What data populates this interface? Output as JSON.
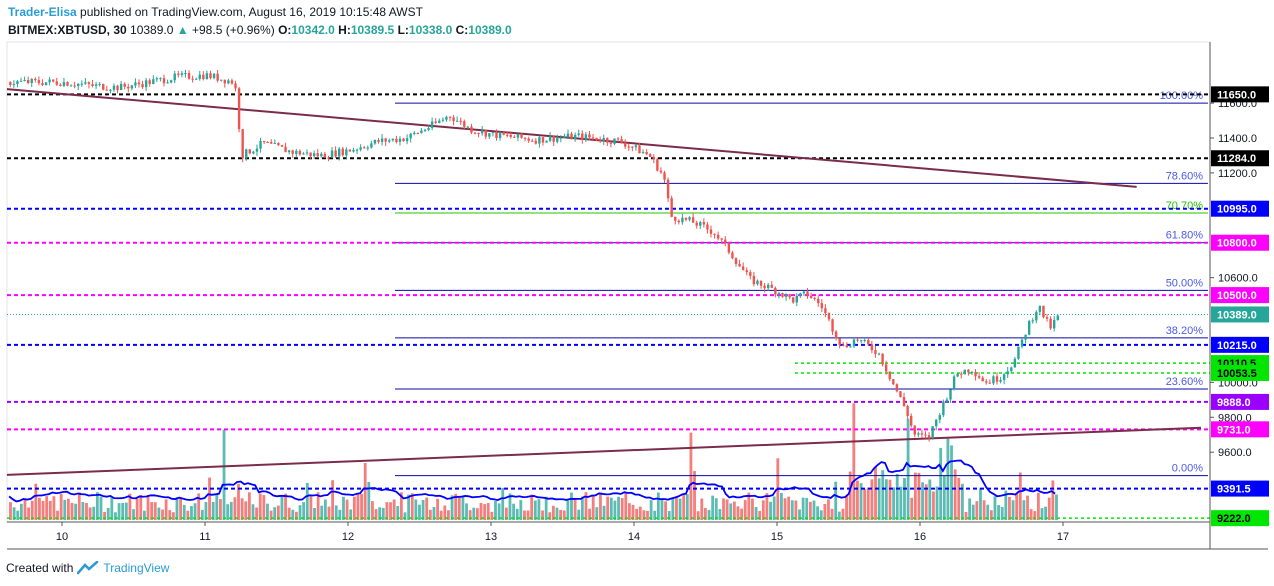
{
  "header": {
    "author": "Trader-Elisa",
    "published_text": "published on TradingView.com, August 16, 2019 10:15:48 AWST",
    "symbol": "BITMEX:XBTUSD, 30",
    "last": "10389.0",
    "arrow": "▲",
    "change": "+98.5 (+0.96%)",
    "o_label": "O:",
    "o": "10342.0",
    "h_label": "H:",
    "h": "10389.5",
    "l_label": "L:",
    "l": "10338.0",
    "c_label": "C:",
    "c": "10389.0"
  },
  "footer": {
    "created_with": "Created with",
    "brand": "TradingView"
  },
  "colors": {
    "up": "#26a69a",
    "down": "#ef5350",
    "trend": "#7b2c4a",
    "blue_dash": "#0000ff",
    "magenta_dash": "#ff00ff",
    "violet_dash": "#9900ff",
    "green_dash": "#00e600",
    "black_dash": "#000000",
    "volume_ma": "#0000ff"
  },
  "chart_data": {
    "type": "candlestick",
    "symbol": "BITMEX:XBTUSD",
    "timeframe": "30",
    "x_labels": [
      "10",
      "11",
      "12",
      "13",
      "14",
      "15",
      "16",
      "17"
    ],
    "y_ticks": [
      11600,
      11400,
      11200,
      10600,
      10000,
      9800,
      9600
    ],
    "y_tick_labels": [
      "11600.0",
      "11400.0",
      "11200.0",
      "10600.0",
      "10000.0",
      "9800.0",
      "9600.0"
    ],
    "ylim": [
      9200,
      11950
    ],
    "price_levels": [
      {
        "value": 11650.0,
        "label": "11650.0",
        "style": "black"
      },
      {
        "value": 11284.0,
        "label": "11284.0",
        "style": "black"
      },
      {
        "value": 10995.0,
        "label": "10995.0",
        "style": "blue"
      },
      {
        "value": 10800.0,
        "label": "10800.0",
        "style": "magenta"
      },
      {
        "value": 10500.0,
        "label": "10500.0",
        "style": "magenta"
      },
      {
        "value": 10389.0,
        "label": "10389.0",
        "style": "last"
      },
      {
        "value": 10215.0,
        "label": "10215.0",
        "style": "blue"
      },
      {
        "value": 10110.5,
        "label": "10110.5",
        "style": "green"
      },
      {
        "value": 10053.5,
        "label": "10053.5",
        "style": "green"
      },
      {
        "value": 9888.0,
        "label": "9888.0",
        "style": "violet"
      },
      {
        "value": 9731.0,
        "label": "9731.0",
        "style": "magenta"
      },
      {
        "value": 9391.5,
        "label": "9391.5",
        "style": "blue"
      },
      {
        "value": 9222.0,
        "label": "9222.0",
        "style": "green"
      }
    ],
    "fib_levels": [
      {
        "label": "100.00%",
        "value": 11600
      },
      {
        "label": "78.60%",
        "value": 11140
      },
      {
        "label": "70.70%",
        "value": 10970
      },
      {
        "label": "61.80%",
        "value": 10800
      },
      {
        "label": "50.00%",
        "value": 10527
      },
      {
        "label": "38.20%",
        "value": 10255
      },
      {
        "label": "23.60%",
        "value": 9962
      },
      {
        "label": "0.00%",
        "value": 9466
      }
    ],
    "trendlines": [
      {
        "from": [
          0.0,
          11680
        ],
        "to": [
          7.9,
          11120
        ]
      },
      {
        "from": [
          0.0,
          9470
        ],
        "to": [
          8.35,
          9740
        ]
      }
    ],
    "price_path": [
      [
        0.0,
        11720
      ],
      [
        0.2,
        11700
      ],
      [
        0.4,
        11690
      ],
      [
        0.6,
        11720
      ],
      [
        0.8,
        11750
      ],
      [
        1.0,
        11760
      ],
      [
        1.1,
        11740
      ],
      [
        1.2,
        11720
      ],
      [
        1.25,
        11300
      ],
      [
        1.4,
        11370
      ],
      [
        1.6,
        11320
      ],
      [
        1.8,
        11300
      ],
      [
        2.0,
        11330
      ],
      [
        2.2,
        11380
      ],
      [
        2.4,
        11400
      ],
      [
        2.6,
        11480
      ],
      [
        2.7,
        11530
      ],
      [
        2.85,
        11450
      ],
      [
        3.0,
        11420
      ],
      [
        3.3,
        11390
      ],
      [
        3.6,
        11410
      ],
      [
        3.9,
        11380
      ],
      [
        4.1,
        11300
      ],
      [
        4.2,
        11180
      ],
      [
        4.25,
        10950
      ],
      [
        4.4,
        10920
      ],
      [
        4.55,
        10860
      ],
      [
        4.65,
        10760
      ],
      [
        4.8,
        10590
      ],
      [
        5.0,
        10520
      ],
      [
        5.1,
        10470
      ],
      [
        5.2,
        10510
      ],
      [
        5.3,
        10440
      ],
      [
        5.45,
        10200
      ],
      [
        5.55,
        10250
      ],
      [
        5.7,
        10170
      ],
      [
        5.8,
        10000
      ],
      [
        5.9,
        9830
      ],
      [
        5.95,
        9700
      ],
      [
        6.05,
        9680
      ],
      [
        6.15,
        9870
      ],
      [
        6.25,
        10050
      ],
      [
        6.35,
        10080
      ],
      [
        6.45,
        10000
      ],
      [
        6.55,
        10030
      ],
      [
        6.65,
        10120
      ],
      [
        6.75,
        10330
      ],
      [
        6.82,
        10440
      ],
      [
        6.9,
        10310
      ],
      [
        6.97,
        10389
      ]
    ],
    "volume_spikes": [
      {
        "x": 1.13,
        "v": 0.95
      },
      {
        "x": 2.12,
        "v": 0.6
      },
      {
        "x": 4.38,
        "v": 0.92
      },
      {
        "x": 5.53,
        "v": 1.0
      },
      {
        "x": 5.0,
        "v": 0.65
      },
      {
        "x": 6.2,
        "v": 0.55
      },
      {
        "x": 5.9,
        "v": 0.78
      },
      {
        "x": 6.7,
        "v": 0.5
      }
    ]
  }
}
